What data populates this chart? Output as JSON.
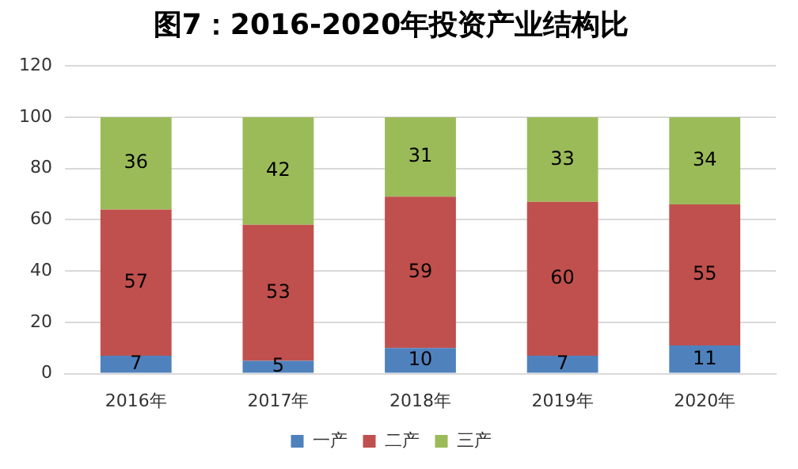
{
  "chart_data": {
    "type": "bar",
    "title": "图7：2016-2020年投资产业结构比",
    "stacked": true,
    "categories": [
      "2016年",
      "2017年",
      "2018年",
      "2019年",
      "2020年"
    ],
    "series": [
      {
        "name": "一产",
        "color": "#4f81bd",
        "values": [
          7,
          5,
          10,
          7,
          11
        ]
      },
      {
        "name": "二产",
        "color": "#c0504d",
        "values": [
          57,
          53,
          59,
          60,
          55
        ]
      },
      {
        "name": "三产",
        "color": "#9bbb59",
        "values": [
          36,
          42,
          31,
          33,
          34
        ]
      }
    ],
    "ylim": [
      0,
      120
    ],
    "yticks": [
      0,
      20,
      40,
      60,
      80,
      100,
      120
    ],
    "grid": "y",
    "legend": "bottom",
    "data_labels": true
  }
}
